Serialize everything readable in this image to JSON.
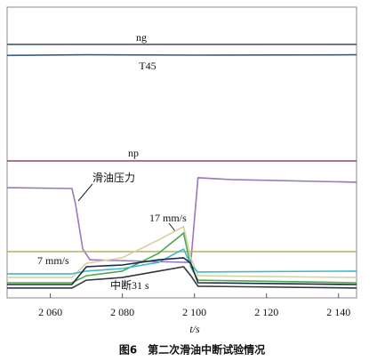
{
  "chart_data": {
    "type": "line",
    "caption": "图6　第二次滑油中断试验情况",
    "xlabel": "t/s",
    "xlim": [
      2048,
      2145
    ],
    "xticks": [
      {
        "value": 2060,
        "label": "2 060"
      },
      {
        "value": 2080,
        "label": "2 080"
      },
      {
        "value": 2100,
        "label": "2 100"
      },
      {
        "value": 2120,
        "label": "2 120"
      },
      {
        "value": 2140,
        "label": "2 140"
      }
    ],
    "ylim": [
      0,
      100
    ],
    "annotations": [
      "ng",
      "T45",
      "np",
      "滑油压力",
      "17 mm/s",
      "7 mm/s",
      "中断31 s"
    ],
    "series": [
      {
        "name": "ng",
        "color": "#4a5868",
        "x": [
          2048,
          2145
        ],
        "values": [
          87.2,
          87.2
        ]
      },
      {
        "name": "T45",
        "color": "#3c5a88",
        "x": [
          2048,
          2070,
          2100,
          2145
        ],
        "values": [
          83.4,
          83.6,
          83.5,
          83.6
        ]
      },
      {
        "name": "np",
        "color": "#8a4a5c",
        "x": [
          2048,
          2145
        ],
        "values": [
          47.1,
          47.1
        ]
      },
      {
        "name": "滑油压力",
        "color": "#9a78bc",
        "x": [
          2048,
          2066,
          2067,
          2069,
          2071,
          2098,
          2099,
          2101,
          2110,
          2145
        ],
        "values": [
          37.9,
          37.6,
          32.1,
          16.8,
          13.1,
          12.2,
          12.2,
          41.3,
          40.7,
          39.8
        ]
      },
      {
        "color": "#b4b064",
        "x": [
          2048,
          2145
        ],
        "values": [
          15.9,
          15.9
        ]
      },
      {
        "color": "#d8d0a0",
        "x": [
          2048,
          2066,
          2070,
          2080,
          2090,
          2097,
          2099,
          2101,
          2145
        ],
        "values": [
          7.0,
          7.0,
          11.9,
          13.8,
          19.9,
          24.5,
          13.8,
          7.6,
          7.0
        ]
      },
      {
        "color": "#4aa84a",
        "x": [
          2048,
          2066,
          2070,
          2080,
          2090,
          2097,
          2099,
          2101,
          2145
        ],
        "values": [
          5.2,
          5.2,
          7.6,
          9.2,
          15.3,
          22.3,
          10.7,
          6.1,
          5.2
        ]
      },
      {
        "color": "#40b8c8",
        "x": [
          2048,
          2066,
          2070,
          2080,
          2090,
          2097,
          2099,
          2101,
          2145
        ],
        "values": [
          8.3,
          8.3,
          9.2,
          10.1,
          12.2,
          16.8,
          11.3,
          8.9,
          9.2
        ]
      },
      {
        "color": "#1a2a4a",
        "x": [
          2048,
          2066,
          2070,
          2080,
          2090,
          2097,
          2099,
          2101,
          2145
        ],
        "values": [
          4.6,
          4.6,
          10.7,
          11.3,
          13.1,
          13.8,
          11.9,
          5.2,
          4.6
        ]
      },
      {
        "color": "#303840",
        "x": [
          2048,
          2066,
          2070,
          2080,
          2090,
          2097,
          2099,
          2101,
          2145
        ],
        "values": [
          3.4,
          3.4,
          6.1,
          7.0,
          9.2,
          10.7,
          7.6,
          4.0,
          3.4
        ]
      }
    ]
  }
}
